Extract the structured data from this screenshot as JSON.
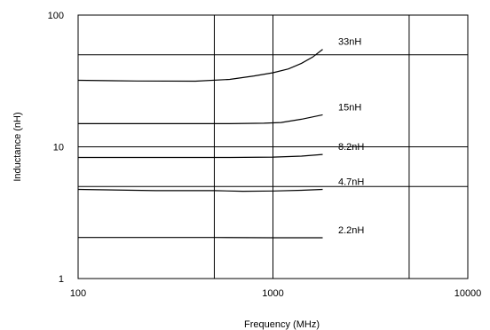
{
  "chart_data": {
    "type": "line",
    "xlabel": "Frequency (MHz)",
    "ylabel": "Inductance (nH)",
    "x_scale": "log",
    "y_scale": "log",
    "xlim": [
      100,
      10000
    ],
    "ylim": [
      1,
      100
    ],
    "grid": true,
    "x_ticks": [
      100,
      1000,
      10000
    ],
    "x_tick_labels": [
      "100",
      "1000",
      "10000"
    ],
    "y_ticks": [
      1,
      10,
      100
    ],
    "y_tick_labels": [
      "1",
      "10",
      "100"
    ],
    "grid_x": [
      500,
      1000,
      5000
    ],
    "grid_y": [
      5,
      10,
      50
    ],
    "series": [
      {
        "name": "33nH",
        "points": [
          [
            100,
            32
          ],
          [
            200,
            31.6
          ],
          [
            400,
            31.5
          ],
          [
            600,
            32.5
          ],
          [
            800,
            34.5
          ],
          [
            1000,
            36.5
          ],
          [
            1200,
            39
          ],
          [
            1400,
            43
          ],
          [
            1600,
            48
          ],
          [
            1800,
            55
          ]
        ]
      },
      {
        "name": "15nH",
        "points": [
          [
            100,
            15
          ],
          [
            300,
            15
          ],
          [
            600,
            15
          ],
          [
            900,
            15.1
          ],
          [
            1100,
            15.3
          ],
          [
            1400,
            16.2
          ],
          [
            1800,
            17.5
          ]
        ]
      },
      {
        "name": "8.2nH",
        "points": [
          [
            100,
            8.3
          ],
          [
            300,
            8.3
          ],
          [
            600,
            8.3
          ],
          [
            1000,
            8.35
          ],
          [
            1400,
            8.5
          ],
          [
            1800,
            8.75
          ]
        ]
      },
      {
        "name": "4.7nH",
        "points": [
          [
            100,
            4.75
          ],
          [
            250,
            4.65
          ],
          [
            500,
            4.65
          ],
          [
            700,
            4.6
          ],
          [
            1000,
            4.62
          ],
          [
            1400,
            4.68
          ],
          [
            1800,
            4.75
          ]
        ]
      },
      {
        "name": "2.2nH",
        "points": [
          [
            100,
            2.05
          ],
          [
            500,
            2.05
          ],
          [
            1000,
            2.04
          ],
          [
            1800,
            2.04
          ]
        ]
      }
    ]
  }
}
